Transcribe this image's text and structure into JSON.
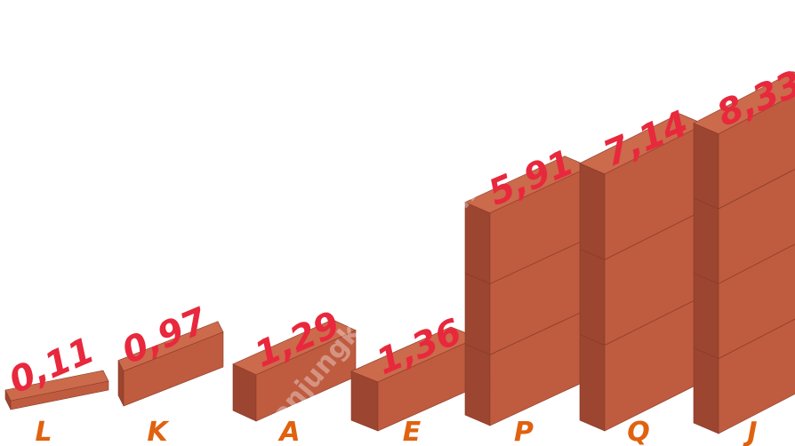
{
  "chart_data": {
    "type": "bar",
    "categories": [
      "L",
      "K",
      "A",
      "E",
      "P",
      "Q",
      "J"
    ],
    "values": [
      0.11,
      0.97,
      1.29,
      1.36,
      5.91,
      7.14,
      8.33
    ],
    "value_labels": [
      "0,11",
      "0,97",
      "1,29",
      "1,36",
      "5,91",
      "7,14",
      "8,33"
    ],
    "style": "3d-isometric-blocks",
    "grid": false,
    "legend": "none"
  },
  "watermark": "tanjungkota.bps.go.id",
  "colors": {
    "front_face": "#bf5b3f",
    "side_face": "#9c4530",
    "top_face": "#cc6a4c",
    "value_label": "#e8283c",
    "category_label": "#e0620f"
  }
}
